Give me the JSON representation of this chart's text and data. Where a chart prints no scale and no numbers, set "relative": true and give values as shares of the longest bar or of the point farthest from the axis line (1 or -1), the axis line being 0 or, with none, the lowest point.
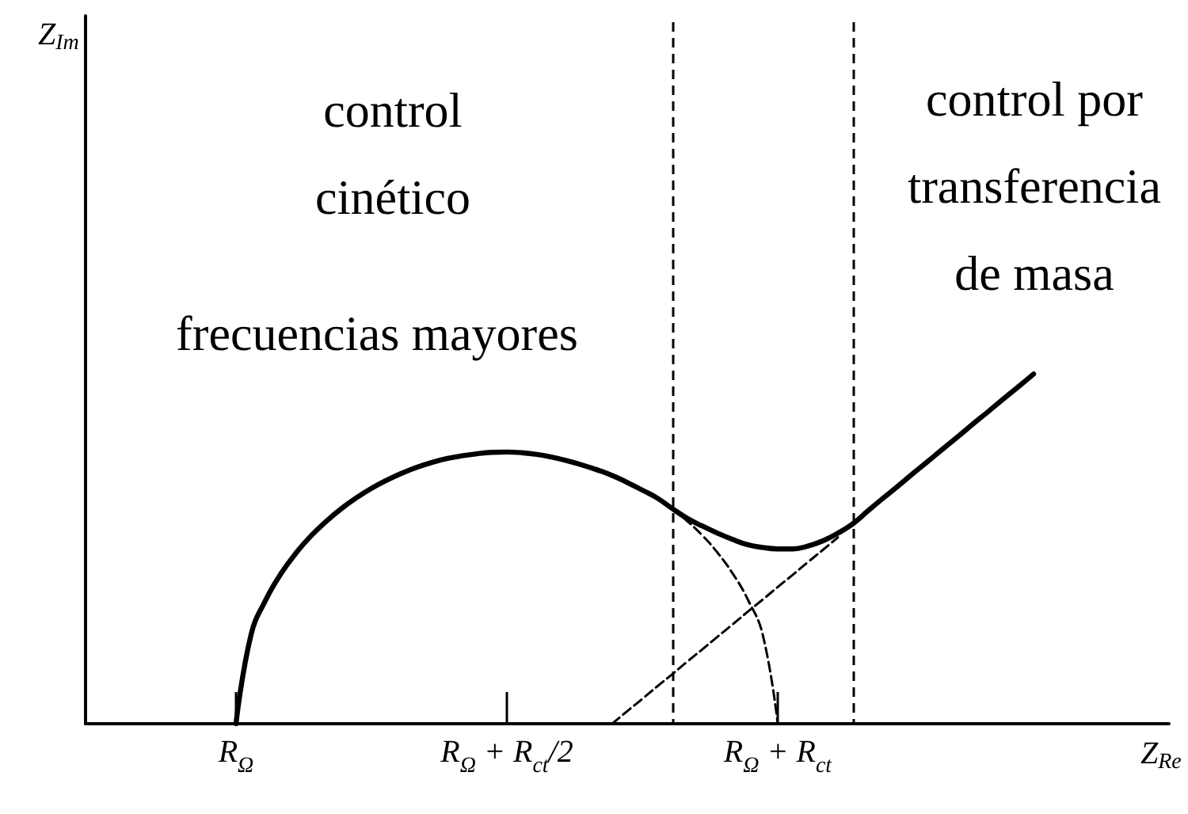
{
  "chart_data": {
    "type": "line",
    "relative": true,
    "xlabel": "Z$_{Re}$",
    "categories": [
      null,
      null,
      null,
      null,
      null,
      null,
      null,
      null,
      null,
      null,
      "R$_{Ω}$",
      null,
      null,
      null,
      null,
      null,
      null,
      null,
      null,
      null,
      null,
      null,
      null,
      null,
      null,
      null,
      null,
      null,
      "R$_{Ω}$ + R$_{ct}$/2",
      null,
      null,
      null,
      null,
      null,
      null,
      null,
      null,
      null,
      null,
      null,
      null,
      null,
      null,
      null,
      null,
      null,
      "R$_{Ω}$ + R$_{ct}$",
      null,
      null,
      null,
      null,
      null,
      null,
      null,
      null,
      null,
      null,
      null,
      null,
      null,
      null,
      null,
      null,
      null,
      null,
      null,
      null,
      null,
      null,
      null,
      null,
      null,
      null
    ],
    "series": [
      {
        "color": "#000000",
        "line_style": "solid",
        "values": [
          null,
          null,
          null,
          null,
          null,
          null,
          null,
          null,
          null,
          null,
          0,
          0.255,
          0.356,
          0.43,
          0.489,
          0.538,
          0.579,
          0.615,
          0.646,
          0.673,
          0.696,
          0.716,
          0.733,
          0.747,
          0.758,
          0.766,
          0.772,
          0.776,
          0.777,
          0.775,
          0.77,
          0.762,
          0.752,
          0.74,
          0.726,
          0.71,
          0.69,
          0.668,
          0.645,
          0.615,
          0.587,
          0.565,
          0.545,
          0.527,
          0.512,
          0.504,
          0.5,
          0.5,
          0.508,
          0.523,
          0.545,
          0.572,
          0.609,
          0.645,
          0.68,
          0.716,
          0.751,
          0.787,
          0.822,
          0.858,
          0.893,
          0.929,
          0.964,
          1,
          null,
          null,
          null,
          null,
          null,
          null,
          null,
          null,
          null
        ]
      },
      {
        "color": "#000000",
        "line_style": "dashed",
        "values": [
          null,
          null,
          null,
          null,
          null,
          null,
          null,
          null,
          null,
          null,
          null,
          null,
          null,
          null,
          null,
          null,
          null,
          null,
          null,
          null,
          null,
          null,
          null,
          null,
          null,
          null,
          null,
          null,
          null,
          null,
          null,
          null,
          null,
          null,
          null,
          null,
          null,
          null,
          null,
          0.615,
          0.579,
          0.538,
          0.489,
          0.43,
          0.356,
          0.255,
          0,
          null,
          null,
          null,
          null,
          null,
          null,
          null,
          null,
          null,
          null,
          null,
          null,
          null,
          null,
          null,
          null,
          null,
          null,
          null,
          null,
          null,
          null,
          null,
          null,
          null,
          null
        ]
      },
      {
        "color": "#000000",
        "line_style": "dashed",
        "values": [
          null,
          null,
          null,
          null,
          null,
          null,
          null,
          null,
          null,
          null,
          null,
          null,
          null,
          null,
          null,
          null,
          null,
          null,
          null,
          null,
          null,
          null,
          null,
          null,
          null,
          null,
          null,
          null,
          null,
          null,
          null,
          null,
          null,
          null,
          null,
          0,
          0.036,
          0.071,
          0.107,
          0.142,
          0.178,
          0.213,
          0.249,
          0.284,
          0.32,
          0.355,
          0.391,
          0.426,
          0.462,
          0.497,
          0.533,
          null,
          null,
          null,
          null,
          null,
          null,
          null,
          null,
          null,
          null,
          null,
          null,
          null,
          null,
          null,
          null,
          null,
          null,
          null,
          null,
          null,
          null
        ]
      }
    ],
    "annotations": [
      "Z$_{Im}$",
      "control cinético",
      "frecuencias mayores",
      "control por transferencia de masa"
    ]
  }
}
